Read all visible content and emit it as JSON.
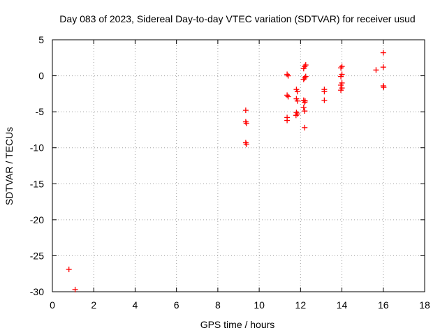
{
  "chart_data": {
    "type": "scatter",
    "title": "Day 083 of 2023, Sidereal Day-to-day VTEC variation (SDTVAR) for receiver usud",
    "xlabel": "GPS time / hours",
    "ylabel": "SDTVAR / TECUs",
    "xlim": [
      0,
      18
    ],
    "ylim": [
      -30,
      5
    ],
    "xticks": [
      0,
      2,
      4,
      6,
      8,
      10,
      12,
      14,
      16,
      18
    ],
    "yticks": [
      5,
      0,
      -5,
      -10,
      -15,
      -20,
      -25,
      -30
    ],
    "grid": true,
    "marker": "plus",
    "colors": {
      "points": "#ff0000",
      "grid": "#a0a0a0",
      "axes": "#000000"
    },
    "series": [
      {
        "name": "SDTVAR",
        "points": [
          [
            0.8,
            -26.9
          ],
          [
            1.1,
            -29.7
          ],
          [
            9.35,
            -4.8
          ],
          [
            9.35,
            -6.4
          ],
          [
            9.38,
            -6.6
          ],
          [
            9.35,
            -9.3
          ],
          [
            9.38,
            -9.5
          ],
          [
            11.35,
            0.2
          ],
          [
            11.4,
            0.0
          ],
          [
            11.35,
            -2.7
          ],
          [
            11.4,
            -2.9
          ],
          [
            11.35,
            -5.8
          ],
          [
            11.35,
            -6.2
          ],
          [
            11.8,
            -1.9
          ],
          [
            11.85,
            -2.2
          ],
          [
            11.8,
            -3.2
          ],
          [
            11.85,
            -3.5
          ],
          [
            11.8,
            -5.1
          ],
          [
            11.85,
            -5.3
          ],
          [
            11.78,
            -5.5
          ],
          [
            12.15,
            1.0
          ],
          [
            12.2,
            1.3
          ],
          [
            12.25,
            1.5
          ],
          [
            12.15,
            -0.5
          ],
          [
            12.2,
            -0.3
          ],
          [
            12.25,
            -0.1
          ],
          [
            12.15,
            -3.4
          ],
          [
            12.2,
            -3.7
          ],
          [
            12.22,
            -3.5
          ],
          [
            12.15,
            -4.4
          ],
          [
            12.2,
            -4.9
          ],
          [
            12.2,
            -7.2
          ],
          [
            13.15,
            -1.9
          ],
          [
            13.15,
            -2.2
          ],
          [
            13.15,
            -3.4
          ],
          [
            14.0,
            1.3
          ],
          [
            13.95,
            1.1
          ],
          [
            14.0,
            0.2
          ],
          [
            13.95,
            -0.1
          ],
          [
            14.0,
            -1.0
          ],
          [
            13.95,
            -1.3
          ],
          [
            14.0,
            -1.7
          ],
          [
            13.95,
            -2.0
          ],
          [
            15.65,
            0.8
          ],
          [
            16.0,
            3.2
          ],
          [
            16.0,
            1.2
          ],
          [
            16.0,
            -1.4
          ],
          [
            16.02,
            -1.6
          ]
        ]
      }
    ]
  }
}
